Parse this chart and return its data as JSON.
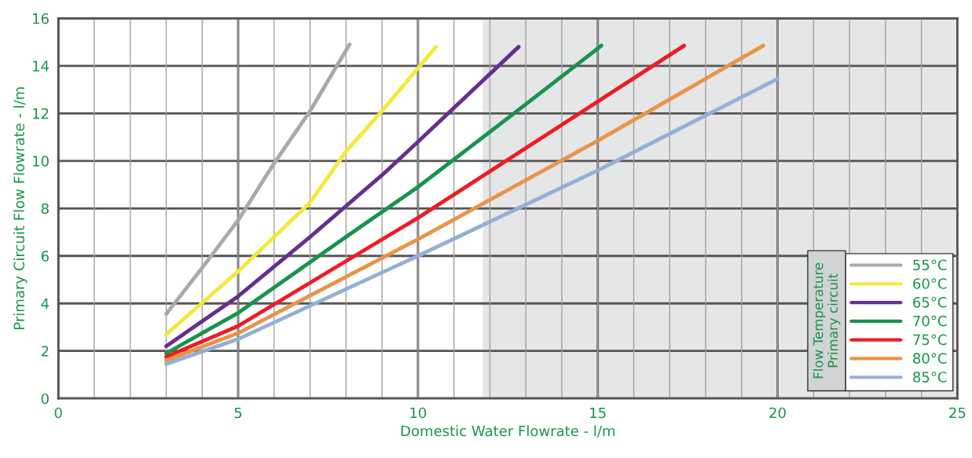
{
  "chart_data": {
    "type": "line",
    "xlabel": "Domestic Water Flowrate - l/m",
    "ylabel": "Primary Circuit Flow Flowrate - l/m",
    "legend_title": "Flow Temperature\nPrimary circuit",
    "xlim": [
      0,
      25
    ],
    "xticks": [
      0,
      5,
      10,
      15,
      20,
      25
    ],
    "ylim": [
      0,
      16
    ],
    "yticks": [
      0,
      2,
      4,
      6,
      8,
      10,
      12,
      14,
      16
    ],
    "grid": true,
    "legend": "bottom right",
    "line_style": "solid",
    "marker": "none",
    "bands": [
      {
        "axis": "x",
        "from": 11.8,
        "to": 25,
        "color": "#e5e6e8"
      }
    ],
    "series": [
      {
        "name": "55°C",
        "color": "#a7a9ac",
        "x": [
          3,
          4,
          5,
          6,
          7,
          8.1
        ],
        "values": [
          3.55,
          5.5,
          7.5,
          9.9,
          12.1,
          14.9
        ]
      },
      {
        "name": "60°C",
        "color": "#f2e93a",
        "x": [
          3,
          5,
          7,
          8,
          9,
          10.5
        ],
        "values": [
          2.7,
          5.35,
          8.25,
          10.4,
          12.1,
          14.8
        ]
      },
      {
        "name": "65°C",
        "color": "#652f8e",
        "x": [
          3,
          5,
          7,
          9,
          10,
          12.8
        ],
        "values": [
          2.2,
          4.3,
          6.8,
          9.4,
          10.8,
          14.8
        ]
      },
      {
        "name": "70°C",
        "color": "#17944a",
        "x": [
          3,
          5,
          8,
          10,
          12.5,
          15.1
        ],
        "values": [
          1.9,
          3.6,
          6.8,
          8.9,
          11.8,
          14.85
        ]
      },
      {
        "name": "75°C",
        "color": "#ed1c24",
        "x": [
          3,
          5,
          10,
          15,
          17.4
        ],
        "values": [
          1.75,
          3.05,
          7.6,
          12.5,
          14.85
        ]
      },
      {
        "name": "80°C",
        "color": "#e8944a",
        "x": [
          3,
          5,
          10,
          15,
          19.6
        ],
        "values": [
          1.6,
          2.75,
          6.7,
          10.85,
          14.85
        ]
      },
      {
        "name": "85°C",
        "color": "#94afd6",
        "x": [
          3,
          5,
          10,
          15,
          20
        ],
        "values": [
          1.45,
          2.5,
          6.0,
          9.6,
          13.45
        ]
      }
    ]
  }
}
